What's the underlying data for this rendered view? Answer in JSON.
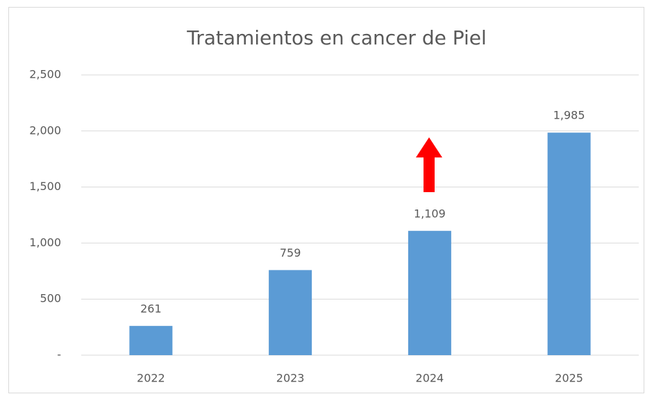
{
  "chart_data": {
    "type": "bar",
    "title": "Tratamientos en cancer de Piel",
    "categories": [
      "2022",
      "2023",
      "2024",
      "2025"
    ],
    "values": [
      261,
      759,
      1109,
      1985
    ],
    "value_labels": [
      "261",
      "759",
      "1,109",
      "1,985"
    ],
    "color": "#5b9bd5",
    "ylim": [
      0,
      2500
    ],
    "yticks": [
      {
        "value": 0,
        "label": "-"
      },
      500,
      {
        "value": 1000,
        "label": "1,000"
      },
      {
        "value": 1500,
        "label": "1,500"
      },
      {
        "value": 2000,
        "label": "2,000"
      },
      {
        "value": 2500,
        "label": "2,500"
      }
    ],
    "grid": true
  }
}
